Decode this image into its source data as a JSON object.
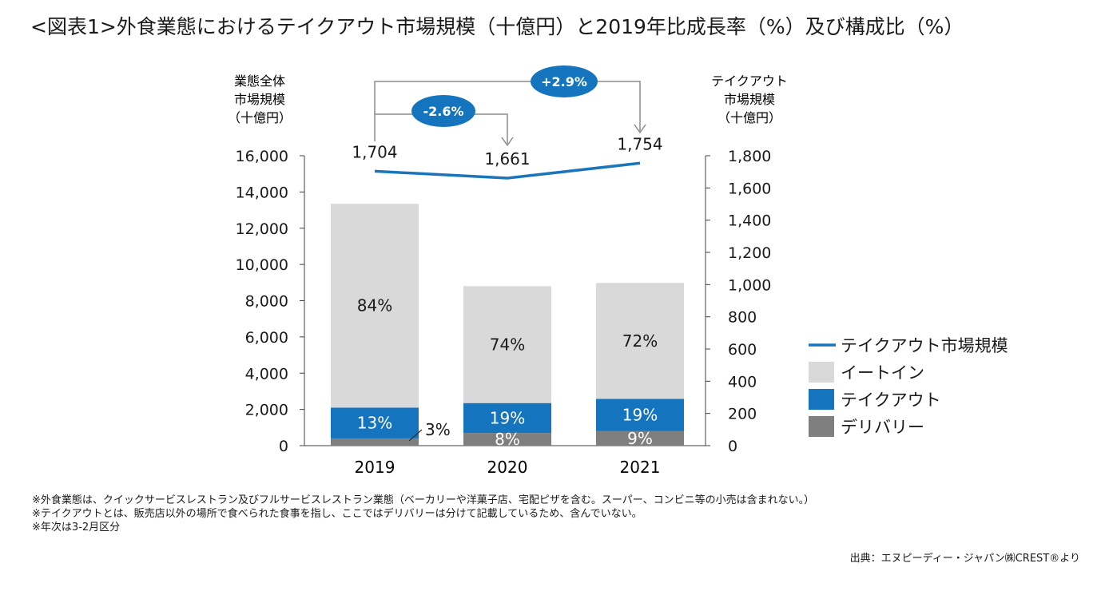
{
  "title": "<図表1>外食業態におけるテイクアウト市場規模（十億円）と2019年比成長率（%）及び構成比（%）",
  "chart_data": {
    "type": "bar",
    "subtype": "stacked bar + line (dual axis)",
    "categories": [
      "2019",
      "2020",
      "2021"
    ],
    "left_axis": {
      "label_lines": [
        "業態全体",
        "市場規模",
        "（十億円）"
      ],
      "ylim": [
        0,
        16000
      ],
      "ticks": [
        0,
        2000,
        4000,
        6000,
        8000,
        10000,
        12000,
        14000,
        16000
      ],
      "tick_labels": [
        "0",
        "2,000",
        "4,000",
        "6,000",
        "8,000",
        "10,000",
        "12,000",
        "14,000",
        "16,000"
      ]
    },
    "right_axis": {
      "label_lines": [
        "テイクアウト",
        "市場規模",
        "（十億円）"
      ],
      "ylim": [
        0,
        1800
      ],
      "ticks": [
        0,
        200,
        400,
        600,
        800,
        1000,
        1200,
        1400,
        1600,
        1800
      ],
      "tick_labels": [
        "0",
        "200",
        "400",
        "600",
        "800",
        "1,000",
        "1,200",
        "1,400",
        "1,600",
        "1,800"
      ]
    },
    "bar_series": [
      {
        "name": "デリバリー",
        "color": "#7f7f7f",
        "values": [
          400,
          700,
          800
        ],
        "labels": [
          "3%",
          "8%",
          "9%"
        ]
      },
      {
        "name": "テイクアウト",
        "color": "#1474be",
        "values": [
          1700,
          1650,
          1780
        ],
        "labels": [
          "13%",
          "19%",
          "19%"
        ]
      },
      {
        "name": "イートイン",
        "color": "#d9d9d9",
        "values": [
          11250,
          6450,
          6400
        ],
        "labels": [
          "84%",
          "74%",
          "72%"
        ]
      }
    ],
    "line_series": {
      "name": "テイクアウト市場規模",
      "color": "#1b75bb",
      "values": [
        1704,
        1661,
        1754
      ],
      "value_labels": [
        "1,704",
        "1,661",
        "1,754"
      ]
    },
    "growth_annotations": [
      {
        "label": "-2.6%",
        "from": "2019",
        "to": "2020"
      },
      {
        "label": "+2.9%",
        "from": "2019",
        "to": "2021"
      }
    ],
    "legend": [
      {
        "name": "テイクアウト市場規模",
        "type": "line",
        "color": "#1b75bb"
      },
      {
        "name": "イートイン",
        "type": "box",
        "color": "#d9d9d9"
      },
      {
        "name": "テイクアウト",
        "type": "box",
        "color": "#1474be"
      },
      {
        "name": "デリバリー",
        "type": "box",
        "color": "#7f7f7f"
      }
    ],
    "legend_position": "right"
  },
  "notes": [
    "※外食業態は、クイックサービスレストラン及びフルサービスレストラン業態（ベーカリーや洋菓子店、宅配ピザを含む。スーパー、コンビニ等の小売は含まれない。）",
    "※テイクアウトとは、販売店以外の場所で食べられた食事を指し、ここではデリバリーは分けて記載しているため、含んでいない。",
    "※年次は3-2月区分"
  ],
  "source": "出典：エヌピーディー・ジャパン㈱CREST®より"
}
